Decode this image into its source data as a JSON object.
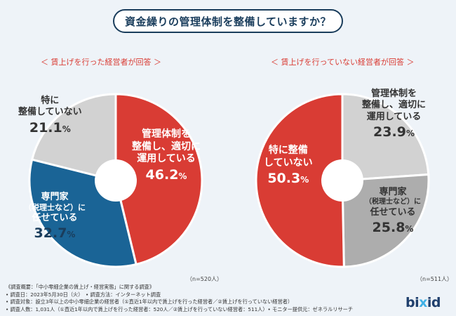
{
  "title": "資金繰りの管理体制を整備していますか？",
  "colors": {
    "red": "#d93c34",
    "blue": "#1a6496",
    "gray_light": "#d2d2d2",
    "gray_mid": "#adadad",
    "title_border": "#1a3d5c"
  },
  "chart_data": [
    {
      "type": "pie",
      "title": "＜ 賃上げを行った経営者が回答 ＞",
      "n_label": "（n=520人）",
      "unit": "%",
      "slices": [
        {
          "label_lines": [
            "管理体制を",
            "整備し、適切に",
            "運用している"
          ],
          "value": 46.2,
          "num": "46.2",
          "color": "#d93c34"
        },
        {
          "label_lines": [
            "専門家",
            "（税理士など）に",
            "任せている"
          ],
          "value": 32.7,
          "num": "32.7",
          "color": "#1a6496"
        },
        {
          "label_lines": [
            "特に",
            "整備していない"
          ],
          "value": 21.1,
          "num": "21.1",
          "color": "#d2d2d2"
        }
      ]
    },
    {
      "type": "pie",
      "title": "＜ 賃上げを行っていない経営者が回答 ＞",
      "n_label": "（n=511人）",
      "unit": "%",
      "slices": [
        {
          "label_lines": [
            "管理体制を",
            "整備し、適切に",
            "運用している"
          ],
          "value": 23.9,
          "num": "23.9",
          "color": "#d2d2d2"
        },
        {
          "label_lines": [
            "専門家",
            "（税理士など）に",
            "任せている"
          ],
          "value": 25.8,
          "num": "25.8",
          "color": "#adadad"
        },
        {
          "label_lines": [
            "特に整備",
            "していない"
          ],
          "value": 50.3,
          "num": "50.3",
          "color": "#d93c34"
        }
      ]
    }
  ],
  "footer": {
    "lines": [
      "《調査概要：「中小零細企業の賃上げ・経営実態」に関する調査》",
      "• 調査日：2023年5月30日（火）　• 調査方法：インターネット調査",
      "• 調査対象：設立3年以上の中小零細企業の経営者（①直近1年以内で賃上げを行った経営者／②賃上げを行っていない経営者）",
      "• 調査人数：1,031人（①直近1年以内で賃上げを行った経営者：520人／②賃上げを行っていない経営者：511人）• モニター提供元：ゼネラルリサーチ"
    ]
  },
  "logo": {
    "pre": "bi",
    "mid": "x",
    "post": "id"
  }
}
